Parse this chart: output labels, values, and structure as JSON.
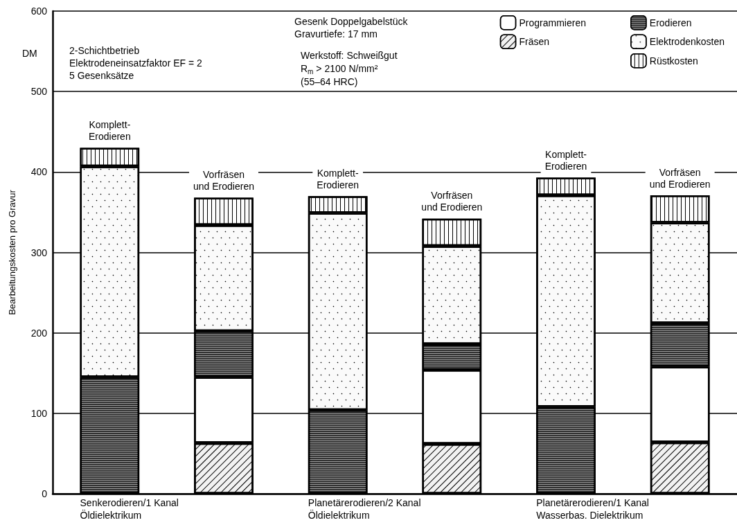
{
  "chart_data": {
    "type": "bar",
    "stacked": true,
    "ylabel": "Bearbeitungskosten pro Gravur",
    "categories": [
      "Komplett-\nErodieren",
      "Vorfräsen\nund Erodieren",
      "Komplett-\nErodieren",
      "Vorfräsen\nund Erodieren",
      "Komplett-\nErodieren",
      "Vorfräsen\nund Erodieren"
    ],
    "series": [
      {
        "name": "Fräsen",
        "color": "#f2f2f2",
        "values": [
          null,
          63,
          null,
          62,
          null,
          64
        ]
      },
      {
        "name": "Programmieren",
        "color": "#ffffff",
        "values": [
          null,
          82,
          null,
          92,
          null,
          94
        ]
      },
      {
        "name": "Erodieren",
        "color": "#333333",
        "values": [
          145,
          57,
          104,
          32,
          108,
          54
        ]
      },
      {
        "name": "Elektrodenkosten",
        "color": "#fafafa",
        "values": [
          262,
          132,
          245,
          122,
          263,
          125
        ]
      },
      {
        "name": "Rüstkosten",
        "color": "#fcfcfc",
        "values": [
          23,
          34,
          21,
          34,
          22,
          34
        ]
      }
    ],
    "ylim": [
      0,
      600
    ],
    "yticks": [
      0,
      100,
      200,
      300,
      400,
      500,
      600
    ],
    "grid": "y",
    "legend": "top right",
    "annotations": [
      "DM",
      "2-Schichtbetrieb\nElektrodeneinsatzfaktor EF = 2\n5 Gesenksätze",
      "Gesenk Doppelgabelstück\nGravurtiefe: 17 mm",
      "Werkstoff: Schweißgut\nR$_{m}$ > 2100 N/mm²\n(55–64 HRC)",
      "Senkerodieren/1 Kanal\nÖldielektrikum",
      "Planetärerodieren/2 Kanal\nÖldielektrikum",
      "Planetärerodieren/1 Kanal\nWasserbas. Dielektrikum"
    ]
  }
}
